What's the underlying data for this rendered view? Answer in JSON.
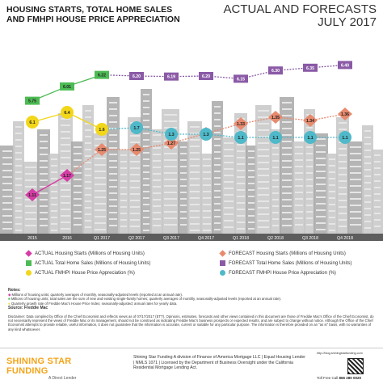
{
  "header": {
    "title_line1": "HOUSING STARTS, TOTAL HOME SALES",
    "title_line2": "AND FMHPI HOUSE PRICE APPRECIATION",
    "right_line1": "ACTUAL AND FORECASTS",
    "right_line2": "JULY 2017"
  },
  "colors": {
    "starts_actual": "#d63ca6",
    "starts_forecast": "#e88a6e",
    "sales_actual": "#4cbb53",
    "sales_forecast": "#8a5aa6",
    "fmhpi_actual": "#f2d61a",
    "fmhpi_forecast": "#4fb9c9",
    "city": "#c7c7c7",
    "city_dark": "#a8a8a8",
    "band": "#5d5d5d"
  },
  "chart_data": {
    "type": "line",
    "categories": [
      "2015",
      "2016",
      "Q1 2017",
      "Q2 2017",
      "Q3 2017",
      "Q4 2017",
      "Q1 2018",
      "Q2 2018",
      "Q3 2018",
      "Q4 2018"
    ],
    "series": [
      {
        "name": "ACTUAL Housing Starts (Millions of Housing Units)",
        "color": "#d63ca6",
        "marker": "diamond",
        "values": [
          1.11,
          1.17,
          null,
          null,
          null,
          null,
          null,
          null,
          null,
          null
        ]
      },
      {
        "name": "FORECAST Housing Starts (Millions of Housing Units)",
        "color": "#e88a6e",
        "marker": "diamond",
        "values": [
          null,
          null,
          1.25,
          1.25,
          1.27,
          1.3,
          1.33,
          1.35,
          1.34,
          1.36
        ]
      },
      {
        "name": "ACTUAL Total Home Sales (Millions of Housing Units)",
        "color": "#4cbb53",
        "marker": "square",
        "values": [
          5.75,
          6.01,
          6.22,
          null,
          null,
          null,
          null,
          null,
          null,
          null
        ]
      },
      {
        "name": "FORECAST Total Home Sales (Millions of Housing Units)",
        "color": "#8a5aa6",
        "marker": "square",
        "values": [
          null,
          null,
          null,
          6.2,
          6.19,
          6.2,
          6.15,
          6.3,
          6.35,
          6.4
        ]
      },
      {
        "name": "ACTUAL FMHPI House Price Appreciation (%)",
        "color": "#f2d61a",
        "marker": "circle",
        "values": [
          6.1,
          6.4,
          1.6,
          null,
          null,
          null,
          null,
          null,
          null,
          null
        ]
      },
      {
        "name": "FORECAST FMHPI House Price Appreciation (%)",
        "color": "#4fb9c9",
        "marker": "circle",
        "values": [
          null,
          null,
          null,
          1.7,
          1.3,
          1.3,
          1.1,
          1.1,
          1.1,
          1.1
        ]
      }
    ],
    "labels": {
      "starts": [
        "1.11",
        "1.17",
        "1.25",
        "1.25",
        "1.27",
        "1.30",
        "1.33",
        "1.35",
        "1.34",
        "1.36"
      ],
      "sales": [
        "5.75",
        "6.01",
        "6.22",
        "6.20",
        "6.19",
        "6.20",
        "6.15",
        "6.30",
        "6.35",
        "6.40"
      ],
      "fmhpi": [
        "6.1",
        "6.4",
        "1.6",
        "1.7",
        "1.3",
        "1.3",
        "1.1",
        "1.1",
        "1.1",
        "1.1"
      ]
    }
  },
  "legend": {
    "items": [
      "ACTUAL Housing Starts (Millions of Housing Units)",
      "ACTUAL Total Home Sales (Millions of Housing Units)",
      "ACTUAL FMHPI House Price Appreciation (%)",
      "FORECAST Housing Starts (Millions of Housing Units)",
      "FORECAST Total Home Sales (Millions of Housing Units)",
      "FORECAST FMHPI House Price Appreciation (%)"
    ]
  },
  "notes": {
    "heading": "Notes:",
    "lines": [
      "Millions of housing units; quarterly averages of monthly, seasonally-adjusted levels (reported at an annual rate).",
      "Millions of housing units; total sales are the sum of new and existing single-family homes; quarterly averages of monthly, seasonally-adjusted levels (reported at an annual rate).",
      "Quarterly growth rate of Freddie Mac's House Price Index; seasonally-adjusted; annual rates for yearly data."
    ],
    "source": "Source: Freddie Mac"
  },
  "disclaimer": "Disclaimer: Data compiled by Office of the Chief Economist and reflects views as of 07/17/2017 (ETT). Opinions, estimates, forecasts and other views contained in this document are those of Freddie Mac's Office of the Chief Economist, do not necessarily represent the views of Freddie Mac or its management, should not be construed as indicating Freddie Mac's business prospects or expected results, and are subject to change without notice. Although the Office of the Chief Economist attempts to provide reliable, useful information, it does not guarantee that the information is accurate, current or suitable for any particular purpose. The information is therefore provided on an \"as is\" basis, with no warranties of any kind whatsoever.",
  "footer": {
    "logo": "SHINING STAR FUNDING",
    "logo_sub": "A Direct Lender",
    "text": "Shining Star Funding A division of Finance of America Mortgage LLC | Equal Housing Lender | NMLS 1071 | Licensed by the Department of Business Oversight under the California Residential Mortgage Lending Act.",
    "url": "http://blog.shiningstarfunding.com",
    "toll_free_label": "Toll Free Call",
    "toll_free_number": "866 280 0020"
  }
}
